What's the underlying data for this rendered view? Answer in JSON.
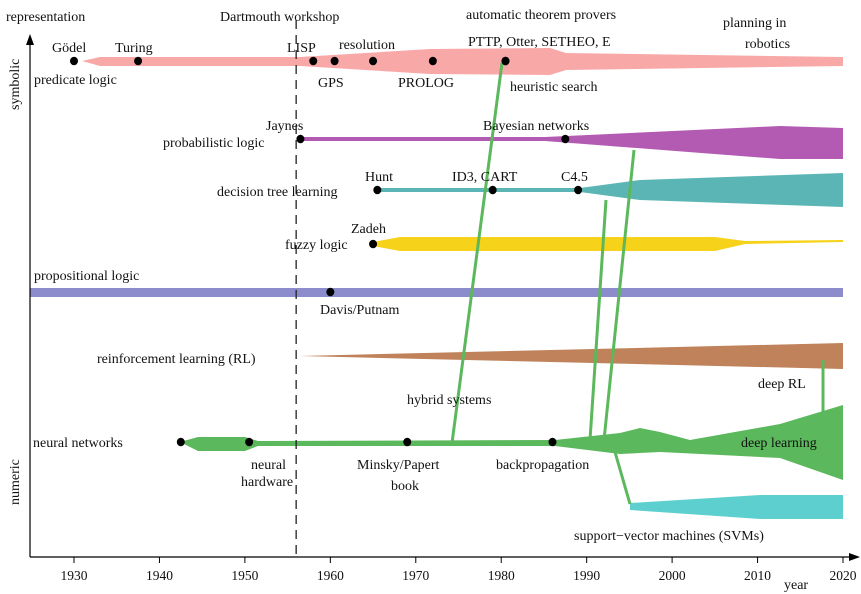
{
  "axes": {
    "y_title": "representation",
    "y_top": "symbolic",
    "y_bottom": "numeric",
    "x_title": "year",
    "x_ticks": [
      1930,
      1940,
      1950,
      1960,
      1970,
      1980,
      1990,
      2000,
      2010,
      2020
    ],
    "x_range": [
      1925,
      2022
    ]
  },
  "events": {
    "dartmouth": {
      "label": "Dartmouth workshop",
      "year": 1956
    }
  },
  "labels": {
    "predicate_logic": "predicate logic",
    "automatic_theorem_provers": "automatic theorem provers",
    "planning_1": "planning in",
    "planning_2": "robotics",
    "probabilistic_logic": "probabilistic logic",
    "decision_tree": "decision tree learning",
    "fuzzy_logic": "fuzzy logic",
    "propositional_logic": "propositional logic",
    "rl": "reinforcement learning (RL)",
    "hybrid": "hybrid systems",
    "deep_rl": "deep RL",
    "neural_networks": "neural networks",
    "deep_learning": "deep learning",
    "svm": "support−vector machines (SVMs)"
  },
  "milestones": [
    {
      "id": "godel",
      "label": "Gödel",
      "year": 1930,
      "row": "symbolic"
    },
    {
      "id": "turing",
      "label": "Turing",
      "year": 1937.5,
      "row": "symbolic"
    },
    {
      "id": "lisp",
      "label": "LISP",
      "year": 1958,
      "row": "symbolic"
    },
    {
      "id": "gps",
      "label": "GPS",
      "year": 1960.5,
      "row": "symbolic"
    },
    {
      "id": "resolution",
      "label": "resolution",
      "year": 1965,
      "row": "symbolic"
    },
    {
      "id": "prolog",
      "label": "PROLOG",
      "year": 1972,
      "row": "symbolic"
    },
    {
      "id": "heuristic",
      "label": "heuristic search",
      "year": 1980.5,
      "row": "symbolic"
    },
    {
      "id": "provers",
      "label": "PTTP, Otter, SETHEO, E",
      "year": 1980.5,
      "row": "symbolic"
    },
    {
      "id": "jaynes",
      "label": "Jaynes",
      "year": 1956.5,
      "row": "probabilistic"
    },
    {
      "id": "bayes",
      "label": "Bayesian networks",
      "year": 1987.5,
      "row": "probabilistic"
    },
    {
      "id": "hunt",
      "label": "Hunt",
      "year": 1965.5,
      "row": "tree"
    },
    {
      "id": "id3",
      "label": "ID3, CART",
      "year": 1979,
      "row": "tree"
    },
    {
      "id": "c45",
      "label": "C4.5",
      "year": 1989,
      "row": "tree"
    },
    {
      "id": "zadeh",
      "label": "Zadeh",
      "year": 1965,
      "row": "fuzzy"
    },
    {
      "id": "davis",
      "label": "Davis/Putnam",
      "year": 1960,
      "row": "propositional"
    },
    {
      "id": "nn",
      "label": "",
      "year": 1942.5,
      "row": "neural"
    },
    {
      "id": "hw1",
      "label": "neural",
      "year": 1950.5,
      "row": "neural"
    },
    {
      "id": "hw2",
      "label": "hardware",
      "year": null,
      "row": "neural"
    },
    {
      "id": "minsky1",
      "label": "Minsky/Papert",
      "year": 1969,
      "row": "neural"
    },
    {
      "id": "minsky2",
      "label": "book",
      "year": null,
      "row": "neural"
    },
    {
      "id": "backprop",
      "label": "backpropagation",
      "year": 1986,
      "row": "neural"
    }
  ],
  "colors": {
    "symbolic": "#f9a8a8",
    "probabilistic": "#b35ab3",
    "tree": "#5cb5b5",
    "fuzzy": "#f7d21a",
    "propositional": "#8c8ccc",
    "rl": "#c0825a",
    "neural": "#5cb85c",
    "svm": "#5ecfcf"
  }
}
